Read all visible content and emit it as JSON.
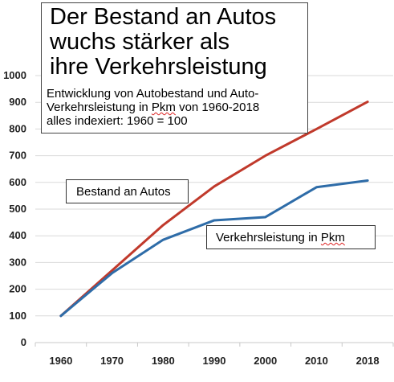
{
  "chart_data": {
    "type": "line",
    "categories": [
      "1960",
      "1970",
      "1980",
      "1990",
      "2000",
      "2010",
      "2018"
    ],
    "series": [
      {
        "name": "Bestand an Autos",
        "values": [
          100,
          270,
          440,
          585,
          700,
          800,
          902
        ],
        "color": "#c0392b"
      },
      {
        "name": "Verkehrsleistung in Pkm",
        "values": [
          100,
          260,
          385,
          458,
          470,
          582,
          607
        ],
        "color": "#2e6ca8"
      }
    ],
    "ylim": [
      0,
      1000
    ],
    "yticks": [
      "0",
      "100",
      "200",
      "300",
      "400",
      "500",
      "600",
      "700",
      "800",
      "900",
      "1000"
    ],
    "grid": true,
    "title": "Der Bestand an Autos wuchs stärker als ihre Verkehrsleistung",
    "subtitle": {
      "line1": "Entwicklung von Autobestand und Auto-",
      "line2_pre": "Verkehrsleistung in ",
      "line2_pkm": "Pkm",
      "line2_post": " von 1960-2018",
      "line3": "alles indexiert: 1960 = 100"
    },
    "title_lines": [
      "Der Bestand an Autos",
      "wuchs stärker als",
      "ihre Verkehrsleistung"
    ],
    "annotations": {
      "autos": "Bestand an Autos",
      "pkm_pre": "Verkehrsleistung in ",
      "pkm_u": "Pkm"
    }
  }
}
